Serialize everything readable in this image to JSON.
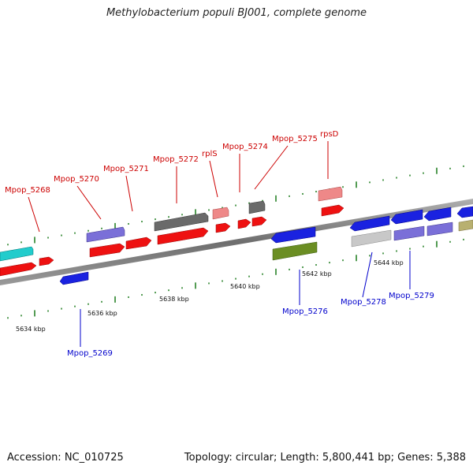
{
  "title": "Methylobacterium populi BJ001, complete genome",
  "footer": {
    "accession": "Accession: NC_010725",
    "summary": "Topology: circular; Length: 5,800,441 bp; Genes: 5,388"
  },
  "colors": {
    "label_forward": "#cc0000",
    "label_reverse": "#0000cc",
    "track": "#7a7a7a",
    "tick": "#1a7a1a"
  },
  "scale_ticks": [
    "5634 kbp",
    "5636 kbp",
    "5638 kbp",
    "5640 kbp",
    "5642 kbp",
    "5644 kbp"
  ],
  "genes_forward": [
    "Mpop_5268",
    "Mpop_5270",
    "Mpop_5271",
    "Mpop_5272",
    "rplS",
    "Mpop_5274",
    "Mpop_5275",
    "rpsD"
  ],
  "genes_reverse": [
    "Mpop_5269",
    "Mpop_5276",
    "Mpop_5278",
    "Mpop_5279"
  ]
}
